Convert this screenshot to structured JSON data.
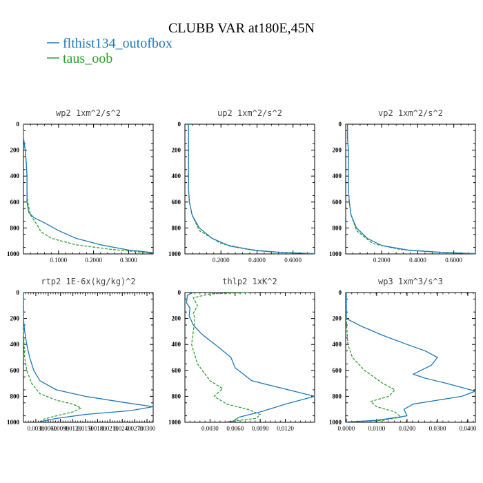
{
  "figure": {
    "title": "CLUBB VAR at180E,45N",
    "legend": [
      {
        "label": "flthist134_outofbox",
        "color": "#1f77b4",
        "dash": "solid"
      },
      {
        "label": "taus_oob",
        "color": "#2ca02c",
        "dash": "dashed"
      }
    ]
  },
  "chart_data": [
    {
      "type": "line",
      "title": "wp2  1xm^2/s^2",
      "xticks": [
        "0.1000",
        "0.2000",
        "0.3000"
      ],
      "xtick_values": [
        0.1,
        0.2,
        0.3
      ],
      "xlim": [
        0,
        0.37
      ],
      "ylim": [
        1000,
        0
      ],
      "yticks": [
        0,
        200,
        400,
        600,
        800,
        1000
      ],
      "series": [
        {
          "name": "flthist134_outofbox",
          "color": "#1f77b4",
          "x": [
            0.0,
            0.0,
            0.005,
            0.008,
            0.01,
            0.01,
            0.01,
            0.015,
            0.03,
            0.06,
            0.1,
            0.15,
            0.22,
            0.3,
            0.37
          ],
          "y": [
            0,
            100,
            200,
            300,
            400,
            500,
            600,
            680,
            720,
            760,
            820,
            880,
            930,
            970,
            990
          ]
        },
        {
          "name": "taus_oob",
          "color": "#2ca02c",
          "x": [
            0.0,
            0.0,
            0.005,
            0.008,
            0.01,
            0.01,
            0.012,
            0.02,
            0.04,
            0.05,
            0.08,
            0.15,
            0.25,
            0.33,
            0.37
          ],
          "y": [
            0,
            100,
            200,
            300,
            400,
            500,
            600,
            700,
            780,
            830,
            880,
            930,
            965,
            985,
            995
          ]
        }
      ]
    },
    {
      "type": "line",
      "title": "up2  1xm^2/s^2",
      "xticks": [
        "0.2000",
        "0.4000",
        "0.6000"
      ],
      "xtick_values": [
        0.2,
        0.4,
        0.6
      ],
      "xlim": [
        0,
        0.72
      ],
      "ylim": [
        1000,
        0
      ],
      "yticks": [
        0,
        200,
        400,
        600,
        800,
        1000
      ],
      "series": [
        {
          "name": "flthist134_outofbox",
          "color": "#1f77b4",
          "x": [
            0.02,
            0.02,
            0.02,
            0.02,
            0.02,
            0.02,
            0.025,
            0.04,
            0.08,
            0.15,
            0.25,
            0.4,
            0.55,
            0.72
          ],
          "y": [
            0,
            100,
            200,
            300,
            400,
            500,
            600,
            700,
            800,
            880,
            940,
            975,
            990,
            998
          ]
        },
        {
          "name": "taus_oob",
          "color": "#2ca02c",
          "x": [
            0.02,
            0.02,
            0.02,
            0.02,
            0.02,
            0.02,
            0.025,
            0.04,
            0.08,
            0.2,
            0.35,
            0.5,
            0.65,
            0.72
          ],
          "y": [
            0,
            100,
            200,
            300,
            400,
            500,
            600,
            700,
            820,
            920,
            965,
            985,
            994,
            998
          ]
        }
      ]
    },
    {
      "type": "line",
      "title": "vp2  1xm^2/s^2",
      "xticks": [
        "0.2000",
        "0.4000",
        "0.6000"
      ],
      "xtick_values": [
        0.2,
        0.4,
        0.6
      ],
      "xlim": [
        0,
        0.72
      ],
      "ylim": [
        1000,
        0
      ],
      "yticks": [
        0,
        200,
        400,
        600,
        800,
        1000
      ],
      "series": [
        {
          "name": "flthist134_outofbox",
          "color": "#1f77b4",
          "x": [
            0.01,
            0.01,
            0.015,
            0.015,
            0.015,
            0.015,
            0.02,
            0.03,
            0.06,
            0.12,
            0.2,
            0.35,
            0.55,
            0.72
          ],
          "y": [
            0,
            100,
            200,
            300,
            400,
            500,
            600,
            700,
            800,
            880,
            935,
            972,
            990,
            998
          ]
        },
        {
          "name": "taus_oob",
          "color": "#2ca02c",
          "x": [
            0.01,
            0.01,
            0.015,
            0.015,
            0.015,
            0.015,
            0.02,
            0.03,
            0.06,
            0.15,
            0.3,
            0.5,
            0.65,
            0.72
          ],
          "y": [
            0,
            100,
            200,
            300,
            400,
            500,
            600,
            700,
            820,
            920,
            965,
            985,
            994,
            998
          ]
        }
      ]
    },
    {
      "type": "line",
      "title": "rtp2  1E-6x(kg/kg)^2",
      "xticks": [
        "0.0030",
        "0.0060",
        "0.0090",
        "0.0120",
        "0.0150",
        "0.0180",
        "0.0210",
        "0.0240",
        "0.0270",
        "0.0300"
      ],
      "xtick_values": [
        0.003,
        0.006,
        0.009,
        0.012,
        0.015,
        0.018,
        0.021,
        0.024,
        0.027,
        0.03
      ],
      "xlim": [
        0,
        0.0315
      ],
      "ylim": [
        1000,
        0
      ],
      "yticks": [
        0,
        200,
        400,
        600,
        800,
        1000
      ],
      "series": [
        {
          "name": "flthist134_outofbox",
          "color": "#1f77b4",
          "x": [
            0.0,
            0.0,
            0.0003,
            0.0008,
            0.0015,
            0.0025,
            0.004,
            0.008,
            0.015,
            0.025,
            0.0315,
            0.026,
            0.015,
            0.008,
            0.004
          ],
          "y": [
            0,
            200,
            300,
            400,
            500,
            600,
            680,
            750,
            800,
            850,
            880,
            910,
            940,
            970,
            995
          ]
        },
        {
          "name": "taus_oob",
          "color": "#2ca02c",
          "x": [
            0.0,
            0.0,
            0.0003,
            0.0008,
            0.002,
            0.004,
            0.008,
            0.012,
            0.014,
            0.012,
            0.008,
            0.005,
            0.004
          ],
          "y": [
            0,
            300,
            500,
            600,
            700,
            780,
            830,
            860,
            890,
            920,
            950,
            975,
            995
          ]
        }
      ]
    },
    {
      "type": "line",
      "title": "thlp2  1xK^2",
      "xticks": [
        "0.0030",
        "0.0060",
        "0.0090",
        "0.0120"
      ],
      "xtick_values": [
        0.003,
        0.006,
        0.009,
        0.012
      ],
      "xlim": [
        0,
        0.0155
      ],
      "ylim": [
        1000,
        0
      ],
      "yticks": [
        0,
        200,
        400,
        600,
        800,
        1000
      ],
      "series": [
        {
          "name": "flthist134_outofbox",
          "color": "#1f77b4",
          "x": [
            0.001,
            0.0003,
            0.0002,
            0.0006,
            0.0005,
            0.001,
            0.002,
            0.004,
            0.0055,
            0.006,
            0.008,
            0.0155,
            0.012,
            0.009,
            0.0065,
            0.006,
            0.006,
            0.005
          ],
          "y": [
            0,
            20,
            80,
            120,
            180,
            250,
            320,
            420,
            500,
            580,
            680,
            800,
            860,
            920,
            960,
            980,
            990,
            998
          ]
        },
        {
          "name": "taus_oob",
          "color": "#2ca02c",
          "x": [
            0.0075,
            0.003,
            0.001,
            0.0015,
            0.001,
            0.0012,
            0.001,
            0.0008,
            0.0015,
            0.003,
            0.0045,
            0.0035,
            0.005,
            0.0075,
            0.009,
            0.0085,
            0.005
          ],
          "y": [
            0,
            10,
            40,
            100,
            160,
            200,
            300,
            400,
            550,
            680,
            740,
            800,
            860,
            900,
            940,
            970,
            995
          ]
        }
      ]
    },
    {
      "type": "line",
      "title": "wp3  1xm^3/s^3",
      "xticks": [
        "0.0000",
        "0.0100",
        "0.0200",
        "0.0300",
        "0.0400"
      ],
      "xtick_values": [
        0.0,
        0.01,
        0.02,
        0.03,
        0.04
      ],
      "xlim": [
        -0.0002,
        0.0425
      ],
      "ylim": [
        1000,
        0
      ],
      "yticks": [
        0,
        200,
        400,
        600,
        800,
        1000
      ],
      "series": [
        {
          "name": "flthist134_outofbox",
          "color": "#1f77b4",
          "x": [
            0.0,
            0.0,
            0.005,
            0.012,
            0.02,
            0.026,
            0.03,
            0.028,
            0.022,
            0.026,
            0.033,
            0.0425,
            0.038,
            0.03,
            0.022,
            0.019,
            0.02,
            0.01,
            0.0
          ],
          "y": [
            0,
            200,
            260,
            330,
            400,
            450,
            500,
            560,
            630,
            660,
            700,
            760,
            800,
            830,
            860,
            900,
            950,
            985,
            998
          ]
        },
        {
          "name": "taus_oob",
          "color": "#2ca02c",
          "x": [
            0.0,
            0.0,
            0.0005,
            0.002,
            0.006,
            0.012,
            0.016,
            0.014,
            0.008,
            0.01,
            0.016,
            0.018,
            0.012,
            0.0
          ],
          "y": [
            0,
            200,
            400,
            500,
            600,
            700,
            750,
            800,
            840,
            880,
            920,
            960,
            985,
            998
          ]
        }
      ]
    }
  ]
}
